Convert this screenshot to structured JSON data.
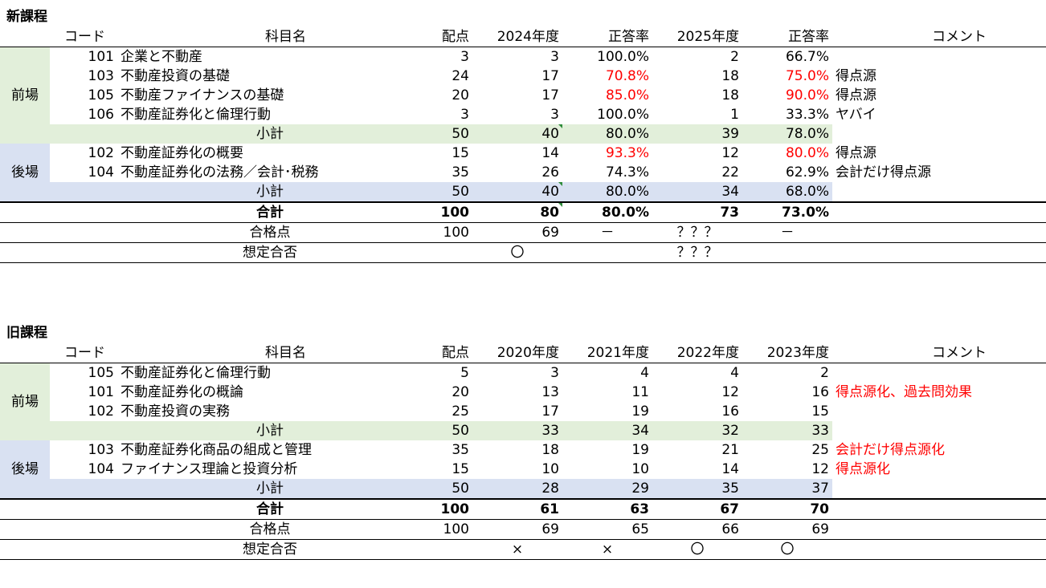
{
  "new": {
    "title": "新課程",
    "headers": {
      "code": "コード",
      "name": "科目名",
      "points": "配点",
      "y1": "2024年度",
      "r1": "正答率",
      "y2": "2025年度",
      "r2": "正答率",
      "comment": "コメント"
    },
    "zenba_label": "前場",
    "kouba_label": "後場",
    "zenba": [
      {
        "code": "101",
        "name": "企業と不動産",
        "points": "3",
        "y1": "3",
        "r1": "100.0%",
        "y2": "2",
        "r2": "66.7%",
        "comment": ""
      },
      {
        "code": "103",
        "name": "不動産投資の基礎",
        "points": "24",
        "y1": "17",
        "r1": "70.8%",
        "y2": "18",
        "r2": "75.0%",
        "comment": "得点源"
      },
      {
        "code": "105",
        "name": "不動産ファイナンスの基礎",
        "points": "20",
        "y1": "17",
        "r1": "85.0%",
        "y2": "18",
        "r2": "90.0%",
        "comment": "得点源"
      },
      {
        "code": "106",
        "name": "不動産証券化と倫理行動",
        "points": "3",
        "y1": "3",
        "r1": "100.0%",
        "y2": "1",
        "r2": "33.3%",
        "comment": "ヤバイ"
      }
    ],
    "zenba_sub": {
      "label": "小計",
      "points": "50",
      "y1": "40",
      "r1": "80.0%",
      "y2": "39",
      "r2": "78.0%"
    },
    "kouba": [
      {
        "code": "102",
        "name": "不動産証券化の概要",
        "points": "15",
        "y1": "14",
        "r1": "93.3%",
        "y2": "12",
        "r2": "80.0%",
        "comment": "得点源"
      },
      {
        "code": "104",
        "name": "不動産証券化の法務／会計･税務",
        "points": "35",
        "y1": "26",
        "r1": "74.3%",
        "y2": "22",
        "r2": "62.9%",
        "comment": "会計だけ得点源"
      }
    ],
    "kouba_sub": {
      "label": "小計",
      "points": "50",
      "y1": "40",
      "r1": "80.0%",
      "y2": "34",
      "r2": "68.0%"
    },
    "total": {
      "label": "合計",
      "points": "100",
      "y1": "80",
      "r1": "80.0%",
      "y2": "73",
      "r2": "73.0%"
    },
    "pass": {
      "label": "合格点",
      "points": "100",
      "y1": "69",
      "r1": "－",
      "y2": "？？？",
      "r2": "－"
    },
    "verdict": {
      "label": "想定合否",
      "y1": "〇",
      "y2": "？？？"
    }
  },
  "old": {
    "title": "旧課程",
    "headers": {
      "code": "コード",
      "name": "科目名",
      "points": "配点",
      "y1": "2020年度",
      "y2": "2021年度",
      "y3": "2022年度",
      "y4": "2023年度",
      "comment": "コメント"
    },
    "zenba_label": "前場",
    "kouba_label": "後場",
    "zenba": [
      {
        "code": "105",
        "name": "不動産証券化と倫理行動",
        "points": "5",
        "y1": "3",
        "y2": "4",
        "y3": "4",
        "y4": "2",
        "comment": ""
      },
      {
        "code": "101",
        "name": "不動産証券化の概論",
        "points": "20",
        "y1": "13",
        "y2": "11",
        "y3": "12",
        "y4": "16",
        "comment": "得点源化、過去問効果"
      },
      {
        "code": "102",
        "name": "不動産投資の実務",
        "points": "25",
        "y1": "17",
        "y2": "19",
        "y3": "16",
        "y4": "15",
        "comment": ""
      }
    ],
    "zenba_sub": {
      "label": "小計",
      "points": "50",
      "y1": "33",
      "y2": "34",
      "y3": "32",
      "y4": "33"
    },
    "kouba": [
      {
        "code": "103",
        "name": "不動産証券化商品の組成と管理",
        "points": "35",
        "y1": "18",
        "y2": "19",
        "y3": "21",
        "y4": "25",
        "comment": "会計だけ得点源化"
      },
      {
        "code": "104",
        "name": "ファイナンス理論と投資分析",
        "points": "15",
        "y1": "10",
        "y2": "10",
        "y3": "14",
        "y4": "12",
        "comment": "得点源化"
      }
    ],
    "kouba_sub": {
      "label": "小計",
      "points": "50",
      "y1": "28",
      "y2": "29",
      "y3": "35",
      "y4": "37"
    },
    "total": {
      "label": "合計",
      "points": "100",
      "y1": "61",
      "y2": "63",
      "y3": "67",
      "y4": "70"
    },
    "pass": {
      "label": "合格点",
      "points": "100",
      "y1": "69",
      "y2": "65",
      "y3": "66",
      "y4": "69"
    },
    "verdict": {
      "label": "想定合否",
      "y1": "×",
      "y2": "×",
      "y3": "〇",
      "y4": "〇"
    }
  }
}
